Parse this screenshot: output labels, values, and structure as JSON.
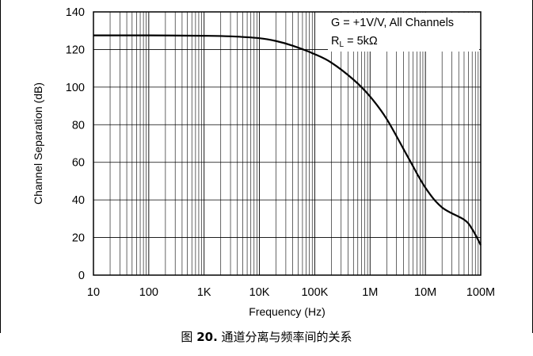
{
  "chart_data": {
    "type": "line",
    "xscale": "log",
    "xlim": [
      10,
      100000000
    ],
    "ylim": [
      0,
      140
    ],
    "xlabel": "Frequency (Hz)",
    "ylabel": "Channel Separation (dB)",
    "x_ticks": [
      10,
      100,
      1000,
      10000,
      100000,
      1000000,
      10000000,
      100000000
    ],
    "x_tick_labels": [
      "10",
      "100",
      "1K",
      "10K",
      "100K",
      "1M",
      "10M",
      "100M"
    ],
    "y_ticks": [
      0,
      20,
      40,
      60,
      80,
      100,
      120,
      140
    ],
    "y_tick_labels": [
      "0",
      "20",
      "40",
      "60",
      "80",
      "100",
      "120",
      "140"
    ],
    "grid": true,
    "legend": {
      "placement": "top-right",
      "line1": "G = +1V/V, All Channels",
      "line2_prefix": "R",
      "line2_sub": "L",
      "line2_suffix": " = 5kΩ"
    },
    "series": [
      {
        "x": [
          10,
          100,
          1000,
          3000,
          10000,
          20000,
          40000,
          100000,
          200000,
          500000,
          1000000,
          2000000,
          5000000,
          10000000,
          20000000,
          50000000,
          70000000,
          100000000
        ],
        "y": [
          127.5,
          127.5,
          127.3,
          127,
          126,
          124.5,
          122,
          117.5,
          113,
          104,
          95,
          83,
          62,
          46.5,
          36,
          29.5,
          24.5,
          16
        ]
      }
    ]
  },
  "caption": {
    "prefix": "图 ",
    "number": "20.",
    "text": " 通道分离与频率间的关系"
  }
}
